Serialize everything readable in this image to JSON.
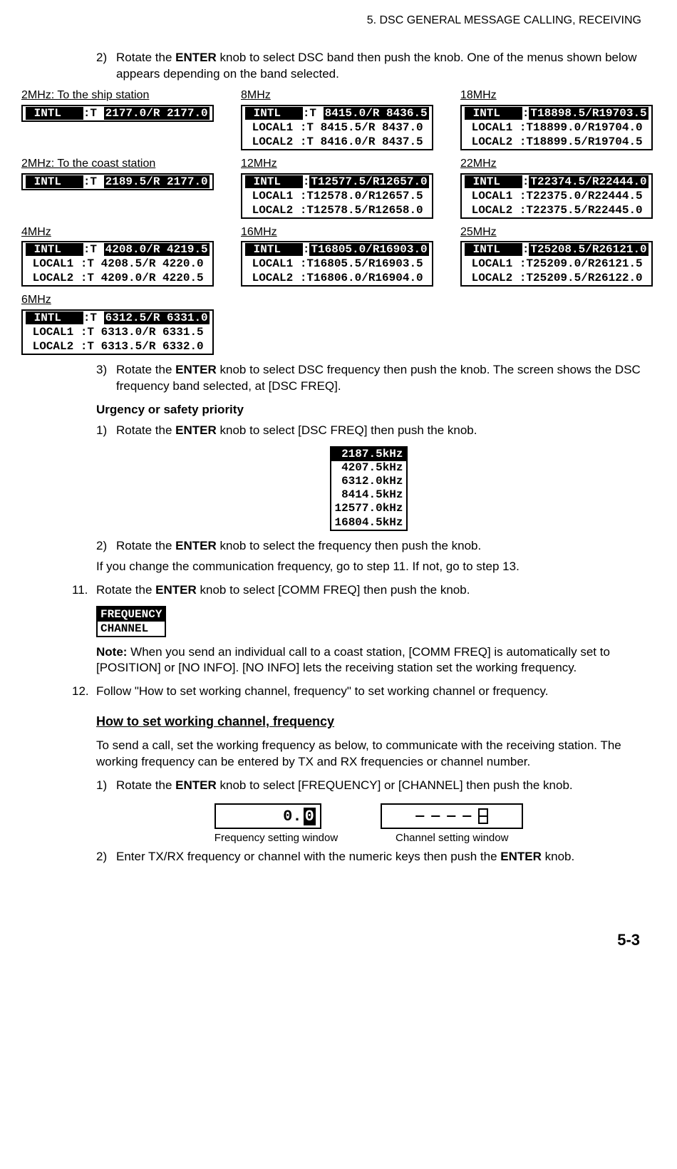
{
  "header": "5.  DSC GENERAL MESSAGE CALLING, RECEIVING",
  "step2": {
    "num": "2)",
    "text_a": "Rotate the ",
    "enter": "ENTER",
    "text_b": " knob to select DSC band then push the knob. One of the menus shown below appears depending on the band selected."
  },
  "bands": {
    "c1": [
      {
        "label": "2MHz: To the ship station",
        "rows": [
          {
            "inv": " INTL   ",
            "mid": ":T ",
            "inv2": "2177.0/R 2177.0"
          }
        ]
      },
      {
        "label": "2MHz: To the coast station",
        "rows": [
          {
            "inv": " INTL   ",
            "mid": ":T ",
            "inv2": "2189.5/R 2177.0"
          }
        ]
      },
      {
        "label": "4MHz",
        "rows": [
          {
            "inv": " INTL   ",
            "mid": ":T ",
            "inv2": "4208.0/R 4219.5"
          },
          {
            "plain": " LOCAL1 :T 4208.5/R 4220.0"
          },
          {
            "plain": " LOCAL2 :T 4209.0/R 4220.5"
          }
        ]
      },
      {
        "label": "6MHz",
        "rows": [
          {
            "inv": " INTL   ",
            "mid": ":T ",
            "inv2": "6312.5/R 6331.0"
          },
          {
            "plain": " LOCAL1 :T 6313.0/R 6331.5"
          },
          {
            "plain": " LOCAL2 :T 6313.5/R 6332.0"
          }
        ]
      }
    ],
    "c2": [
      {
        "label": "8MHz",
        "rows": [
          {
            "inv": " INTL   ",
            "mid": ":T ",
            "inv2": "8415.0/R 8436.5"
          },
          {
            "plain": " LOCAL1 :T 8415.5/R 8437.0"
          },
          {
            "plain": " LOCAL2 :T 8416.0/R 8437.5"
          }
        ]
      },
      {
        "label": "12MHz",
        "rows": [
          {
            "inv": " INTL   ",
            "mid": ":",
            "inv2": "T12577.5/R12657.0"
          },
          {
            "plain": " LOCAL1 :T12578.0/R12657.5"
          },
          {
            "plain": " LOCAL2 :T12578.5/R12658.0"
          }
        ]
      },
      {
        "label": "16MHz",
        "rows": [
          {
            "inv": " INTL   ",
            "mid": ":",
            "inv2": "T16805.0/R16903.0"
          },
          {
            "plain": " LOCAL1 :T16805.5/R16903.5"
          },
          {
            "plain": " LOCAL2 :T16806.0/R16904.0"
          }
        ]
      }
    ],
    "c3": [
      {
        "label": "18MHz",
        "rows": [
          {
            "inv": " INTL   ",
            "mid": ":",
            "inv2": "T18898.5/R19703.5"
          },
          {
            "plain": " LOCAL1 :T18899.0/R19704.0"
          },
          {
            "plain": " LOCAL2 :T18899.5/R19704.5"
          }
        ]
      },
      {
        "label": "22MHz",
        "rows": [
          {
            "inv": " INTL   ",
            "mid": ":",
            "inv2": "T22374.5/R22444.0"
          },
          {
            "plain": " LOCAL1 :T22375.0/R22444.5"
          },
          {
            "plain": " LOCAL2 :T22375.5/R22445.0"
          }
        ]
      },
      {
        "label": "25MHz",
        "rows": [
          {
            "inv": " INTL   ",
            "mid": ":",
            "inv2": "T25208.5/R26121.0"
          },
          {
            "plain": " LOCAL1 :T25209.0/R26121.5"
          },
          {
            "plain": " LOCAL2 :T25209.5/R26122.0"
          }
        ]
      }
    ]
  },
  "step3": {
    "num": "3)",
    "text_a": "Rotate the ",
    "enter": "ENTER",
    "text_b": " knob to select DSC frequency then push the knob. The screen shows the DSC frequency band selected, at [DSC FREQ]."
  },
  "urgency_head": "Urgency or safety priority",
  "u_step1": {
    "num": "1)",
    "text_a": "Rotate the ",
    "enter": "ENTER",
    "text_b": " knob to select [DSC FREQ] then push the knob."
  },
  "freq_list": [
    " 2187.5kHz",
    " 4207.5kHz",
    " 6312.0kHz",
    " 8414.5kHz",
    "12577.0kHz",
    "16804.5kHz"
  ],
  "u_step2": {
    "num": "2)",
    "text_a": "Rotate the ",
    "enter": "ENTER",
    "text_b": " knob to select the frequency then push the knob."
  },
  "u_note": "If you change the communication frequency, go to step 11. If not, go to step 13.",
  "step11": {
    "num": "11.",
    "text_a": "Rotate the ",
    "enter": "ENTER",
    "text_b": " knob to select [COMM FREQ] then push the knob."
  },
  "fc": {
    "l1": "FREQUENCY",
    "l2": "CHANNEL  "
  },
  "note11": {
    "bold": "Note:",
    "text": " When you send an individual call to a coast station, [COMM FREQ] is automatically set to [POSITION] or [NO INFO]. [NO INFO] lets the receiving station set the working frequency."
  },
  "step12": {
    "num": "12.",
    "text": "Follow \"How to set working channel, frequency\" to set working channel or frequency."
  },
  "howto_head": "How to set working channel, frequency",
  "howto_para": "To send a call, set the working frequency as below, to communicate with the receiving station. The working frequency can be entered by TX and RX frequencies or channel number.",
  "howto_s1": {
    "num": "1)",
    "text_a": "Rotate the ",
    "enter": "ENTER",
    "text_b": " knob to select [FREQUENCY] or [CHANNEL] then push the knob."
  },
  "setwin": {
    "freq_digits": "0.",
    "freq_cursor": "0",
    "freq_caption": "Frequency setting window",
    "ch_caption": "Channel setting window"
  },
  "howto_s2": {
    "num": "2)",
    "text_a": "Enter TX/RX frequency or channel with the numeric keys then push the ",
    "enter": "ENTER",
    "text_b": " knob."
  },
  "page_num": "5-3"
}
